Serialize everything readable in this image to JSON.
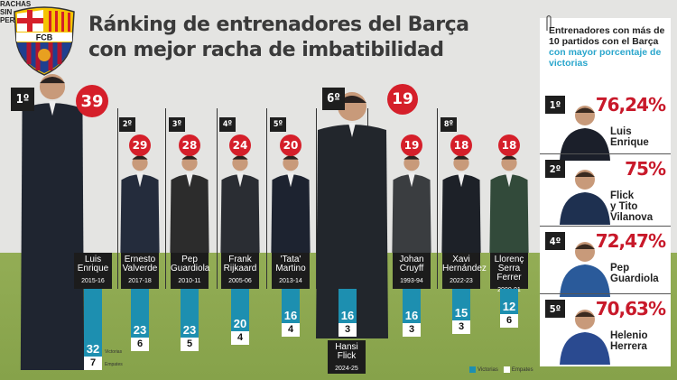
{
  "title": {
    "line1": "Ránking de entrenadores del Barça",
    "line2": "con mejor racha de imbatibilidad"
  },
  "crest_text": "FCB",
  "colors": {
    "victorias": "#1d8fb0",
    "empates": "#ffffff",
    "highlight": "#d51f2a",
    "field": "#8aa64e"
  },
  "racha_label": "RACHAS SIN PERDER",
  "legend": {
    "victorias": "Victorias",
    "empates": "Empates"
  },
  "chart_data": {
    "type": "bar",
    "title": "Ránking de entrenadores del Barça con mejor racha de imbatibilidad",
    "categories": [
      "Luis Enrique 2015-16",
      "Ernesto Valverde 2017-18",
      "Pep Guardiola 2010-11",
      "Frank Rijkaard 2005-06",
      "'Tata' Martino 2013-14",
      "Hansi Flick 2024-25",
      "Johan Cruyff 1993-94",
      "Xavi Hernández 2022-23",
      "Llorenç Serra Ferrer 2000-01"
    ],
    "series": [
      {
        "name": "Victorias",
        "values": [
          32,
          23,
          23,
          20,
          16,
          16,
          16,
          15,
          12
        ]
      },
      {
        "name": "Empates",
        "values": [
          7,
          6,
          5,
          4,
          4,
          3,
          3,
          3,
          6
        ]
      }
    ],
    "legend_position": "bottom",
    "entries": [
      {
        "rank": "1º",
        "total": "39",
        "name1": "Luis",
        "name2": "Enrique",
        "season": "2015-16",
        "wins": 32,
        "draws": 7
      },
      {
        "rank": "2º",
        "total": "29",
        "name1": "Ernesto",
        "name2": "Valverde",
        "season": "2017-18",
        "wins": 23,
        "draws": 6
      },
      {
        "rank": "3º",
        "total": "28",
        "name1": "Pep",
        "name2": "Guardiola",
        "season": "2010-11",
        "wins": 23,
        "draws": 5
      },
      {
        "rank": "4º",
        "total": "24",
        "name1": "Frank",
        "name2": "Rijkaard",
        "season": "2005-06",
        "wins": 20,
        "draws": 4
      },
      {
        "rank": "5º",
        "total": "20",
        "name1": "'Tata'",
        "name2": "Martino",
        "season": "2013-14",
        "wins": 16,
        "draws": 4
      },
      {
        "rank": "6º",
        "total": "19",
        "name1": "Hansi",
        "name2": "Flick",
        "season": "2024-25",
        "wins": 16,
        "draws": 3
      },
      {
        "rank": "",
        "total": "19",
        "name1": "Johan",
        "name2": "Cruyff",
        "season": "1993-94",
        "wins": 16,
        "draws": 3
      },
      {
        "rank": "8º",
        "total": "18",
        "name1": "Xavi",
        "name2": "Hernández",
        "season": "2022-23",
        "wins": 15,
        "draws": 3
      },
      {
        "rank": "",
        "total": "18",
        "name1": "Llorenç",
        "name2": "Serra Ferrer",
        "season": "2000-01",
        "wins": 12,
        "draws": 6
      }
    ]
  },
  "panel": {
    "heading": "Entrenadores con más de 10 partidos con el Barça",
    "heading_highlight": "con mayor porcentaje de victorias",
    "items": [
      {
        "rank": "1º",
        "pct": "76,24%",
        "name1": "Luis",
        "name2": "Enrique"
      },
      {
        "rank": "2º",
        "pct": "75%",
        "name1": "Flick",
        "name2": "y Tito Vilanova"
      },
      {
        "rank": "4º",
        "pct": "72,47%",
        "name1": "Pep",
        "name2": "Guardiola"
      },
      {
        "rank": "5º",
        "pct": "70,63%",
        "name1": "Helenio",
        "name2": "Herrera"
      }
    ]
  }
}
